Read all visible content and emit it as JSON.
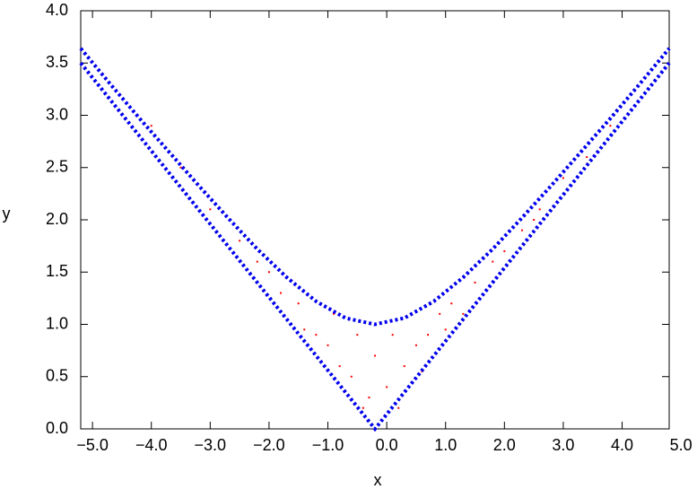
{
  "chart_data": {
    "type": "scatter",
    "x_label": "x",
    "y_label": "y",
    "xlim": [
      -5.2,
      4.8
    ],
    "ylim": [
      0,
      4
    ],
    "xticks": [
      {
        "value": -5,
        "label": "−5.0"
      },
      {
        "value": -4,
        "label": "−4.0"
      },
      {
        "value": -3,
        "label": "−3.0"
      },
      {
        "value": -2,
        "label": "−2.0"
      },
      {
        "value": -1,
        "label": "−1.0"
      },
      {
        "value": 0,
        "label": "0.0"
      },
      {
        "value": 1,
        "label": "1.0"
      },
      {
        "value": 2,
        "label": "2.0"
      },
      {
        "value": 3,
        "label": "3.0"
      },
      {
        "value": 4,
        "label": "4.0"
      },
      {
        "value": 5,
        "label": "5.0"
      }
    ],
    "yticks": [
      {
        "value": 0,
        "label": "0.0"
      },
      0.5,
      {
        "value": 1,
        "label": "1.0"
      },
      1.5,
      {
        "value": 2,
        "label": "2.0"
      },
      2.5,
      {
        "value": 3,
        "label": "3.0"
      },
      3.5,
      {
        "value": 4,
        "label": "4.0"
      }
    ],
    "grid": false,
    "series": [
      {
        "color": "#ff0000",
        "style": "points",
        "x": [
          -3,
          -2.5,
          -2,
          -1.8,
          -1.5,
          -1.2,
          -1,
          -0.8,
          -0.6,
          -0.5,
          -0.3,
          -0.2,
          0,
          0.1,
          0.3,
          0.5,
          0.7,
          0.9,
          1.1,
          1.3,
          1.5,
          1.8,
          2,
          2.3,
          2.6,
          3,
          3.4,
          3.8,
          -3.5,
          -4,
          -0.9,
          -1.4,
          0.6,
          0.2,
          -0.4,
          1,
          -2.2,
          2.5
        ],
        "values": [
          2.1,
          1.8,
          1.5,
          1.3,
          1.2,
          0.9,
          0.8,
          0.6,
          0.5,
          0.9,
          0.3,
          0.7,
          0.4,
          0.9,
          0.6,
          0.8,
          0.9,
          1.1,
          1.2,
          1.1,
          1.4,
          1.6,
          1.7,
          1.9,
          2.1,
          2.4,
          2.6,
          2.9,
          2.5,
          2.9,
          1.1,
          0.95,
          0.55,
          0.2,
          0.2,
          0.95,
          1.6,
          2.0
        ]
      },
      {
        "color": "#0000ee",
        "style": "dotted",
        "x": [
          -5.2,
          -4.7,
          -4.2,
          -3.7,
          -3.2,
          -2.7,
          -2.2,
          -1.7,
          -1.2,
          -0.7,
          -0.2,
          0.3,
          0.8,
          1.3,
          1.8,
          2.3,
          2.8,
          3.3,
          3.8,
          4.3,
          4.8
        ],
        "values": [
          3.5,
          3.15,
          2.8,
          2.45,
          2.1,
          1.75,
          1.4,
          1.05,
          0.7,
          0.35,
          0,
          0.35,
          0.7,
          1.05,
          1.4,
          1.75,
          2.1,
          2.45,
          2.8,
          3.15,
          3.5
        ]
      },
      {
        "color": "#0000ee",
        "style": "dotted",
        "x": [
          -5.2,
          -4.7,
          -4.2,
          -3.7,
          -3.2,
          -2.7,
          -2.2,
          -1.7,
          -1.2,
          -0.7,
          -0.2,
          0.3,
          0.8,
          1.3,
          1.8,
          2.3,
          2.8,
          3.3,
          3.8,
          4.3,
          4.8
        ],
        "values": [
          3.64,
          3.3,
          2.97,
          2.65,
          2.33,
          2.02,
          1.72,
          1.45,
          1.22,
          1.06,
          1,
          1.06,
          1.22,
          1.45,
          1.72,
          2.02,
          2.33,
          2.65,
          2.97,
          3.3,
          3.64
        ]
      }
    ]
  }
}
